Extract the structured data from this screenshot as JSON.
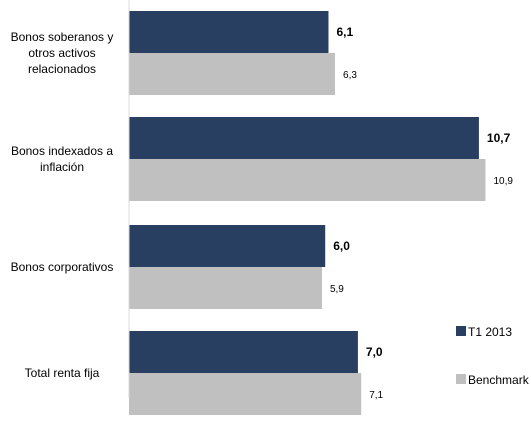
{
  "chart_data": {
    "type": "bar",
    "orientation": "horizontal",
    "categories": [
      [
        "Bonos soberanos y",
        "otros activos",
        "relacionados"
      ],
      [
        "Bonos indexados a",
        "inflación"
      ],
      [
        "Bonos corporativos"
      ],
      [
        "Total renta fija"
      ]
    ],
    "series": [
      {
        "name": "T1 2013",
        "values": [
          6.1,
          10.7,
          6.0,
          7.0
        ],
        "labels": [
          "6,1",
          "10,7",
          "6,0",
          "7,0"
        ],
        "color": "#283f62"
      },
      {
        "name": "Benchmark",
        "values": [
          6.3,
          10.9,
          5.9,
          7.1
        ],
        "labels": [
          "6,3",
          "10,9",
          "5,9",
          "7,1"
        ],
        "color": "#c0c0c0"
      }
    ],
    "xlim": [
      0,
      11.5
    ],
    "grid": false,
    "legend_position": "right"
  }
}
